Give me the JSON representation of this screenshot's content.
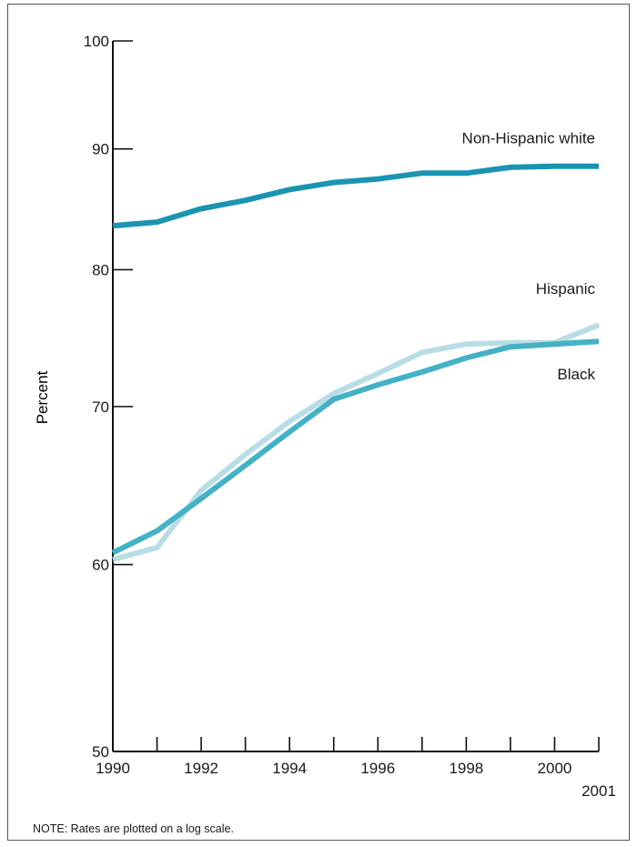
{
  "chart_data": {
    "type": "line",
    "ylabel": "Percent",
    "yscale": "log",
    "ylim": [
      50,
      100
    ],
    "yticks": [
      50,
      60,
      70,
      80,
      90,
      100
    ],
    "xlim": [
      1990,
      2001
    ],
    "x": [
      1990,
      1991,
      1992,
      1993,
      1994,
      1995,
      1996,
      1997,
      1998,
      1999,
      2000,
      2001
    ],
    "xtick_labels": [
      "1990",
      "1992",
      "1994",
      "1996",
      "1998",
      "2000",
      "2001"
    ],
    "series": [
      {
        "name": "Non-Hispanic white",
        "color": "#1a94b0",
        "values": [
          83.5,
          83.8,
          84.9,
          85.6,
          86.5,
          87.1,
          87.4,
          87.9,
          87.9,
          88.4,
          88.5,
          88.5
        ]
      },
      {
        "name": "Hispanic",
        "color": "#b9dde6",
        "values": [
          60.3,
          61.0,
          64.5,
          66.8,
          69.0,
          70.9,
          72.3,
          73.8,
          74.4,
          74.5,
          74.5,
          75.8
        ]
      },
      {
        "name": "Black",
        "color": "#45b1c6",
        "values": [
          60.7,
          62.0,
          64.0,
          66.1,
          68.3,
          70.5,
          71.5,
          72.4,
          73.4,
          74.2,
          74.4,
          74.6
        ]
      }
    ],
    "grid": false,
    "legend": "inline labels at line ends"
  },
  "note": "NOTE: Rates are plotted on a log scale."
}
